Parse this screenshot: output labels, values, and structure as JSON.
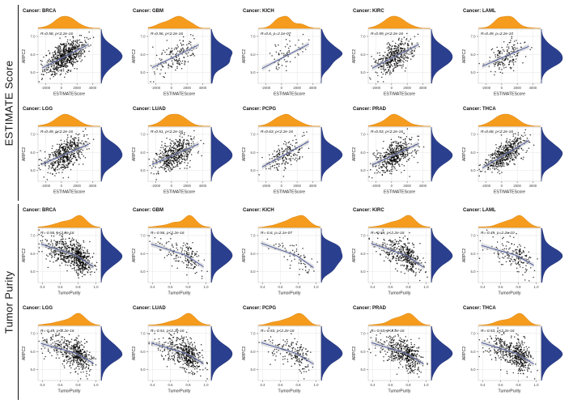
{
  "figure": {
    "groups": [
      {
        "label": "ESTIMATE Score"
      },
      {
        "label": "Tumor Purity"
      }
    ],
    "ylabel": "ARPC2",
    "colors": {
      "top_density": "#F59C1E",
      "top_density_stroke": "#D9820A",
      "right_density": "#2B3F8F",
      "right_density_stroke": "#1F2F6E",
      "trend_line": "#46549B",
      "band": "#BDBDBD",
      "point": "#000000",
      "grid": "#E4E4E4",
      "panel_border": "#C8C8C8",
      "tick_text": "#444444"
    }
  },
  "chart_data": [
    {
      "type": "scatter",
      "row_group": "ESTIMATE Score",
      "cancer": "BRCA",
      "title": "Cancer: BRCA",
      "annotation": "R=0.58, p<2.2e-16",
      "r": 0.58,
      "n": 700,
      "xlabel": "ESTIMATEScore",
      "ylabel": "ARPC2",
      "xlim": [
        -3000,
        5000
      ],
      "x_ticks": [
        -2000,
        0,
        2000,
        4000
      ],
      "x_tick_decimals": 0,
      "ylim": [
        4.4,
        7.4
      ],
      "y_ticks": [
        5,
        6,
        7
      ],
      "y_tick_decimals": 1,
      "skew": false
    },
    {
      "type": "scatter",
      "row_group": "ESTIMATE Score",
      "cancer": "GBM",
      "title": "Cancer: GBM",
      "annotation": "R=0.56, p<2.2e-16",
      "r": 0.56,
      "n": 160,
      "xlabel": "ESTIMATEScore",
      "ylabel": "ARPC2",
      "xlim": [
        -3000,
        5000
      ],
      "x_ticks": [
        -2000,
        0,
        2000,
        4000
      ],
      "x_tick_decimals": 0,
      "ylim": [
        4.4,
        7.4
      ],
      "y_ticks": [
        5,
        6,
        7
      ],
      "y_tick_decimals": 1,
      "skew": false
    },
    {
      "type": "scatter",
      "row_group": "ESTIMATE Score",
      "cancer": "KICH",
      "title": "Cancer: KICH",
      "annotation": "R=0.6, p=2.1e-07",
      "r": 0.6,
      "n": 66,
      "xlabel": "ESTIMATEScore",
      "ylabel": "ARPC2",
      "xlim": [
        -3000,
        5000
      ],
      "x_ticks": [
        -2000,
        0,
        2000,
        4000
      ],
      "x_tick_decimals": 0,
      "ylim": [
        4.4,
        7.4
      ],
      "y_ticks": [
        5,
        6,
        7
      ],
      "y_tick_decimals": 1,
      "skew": false
    },
    {
      "type": "scatter",
      "row_group": "ESTIMATE Score",
      "cancer": "KIRC",
      "title": "Cancer: KIRC",
      "annotation": "R=0.59, p<2.2e-16",
      "r": 0.59,
      "n": 420,
      "xlabel": "ESTIMATEScore",
      "ylabel": "ARPC2",
      "xlim": [
        -3000,
        5000
      ],
      "x_ticks": [
        -2000,
        0,
        2000,
        4000
      ],
      "x_tick_decimals": 0,
      "ylim": [
        4.4,
        7.4
      ],
      "y_ticks": [
        5,
        6,
        7
      ],
      "y_tick_decimals": 1,
      "skew": false
    },
    {
      "type": "scatter",
      "row_group": "ESTIMATE Score",
      "cancer": "LAML",
      "title": "Cancer: LAML",
      "annotation": "R=0.49, p=2.2e-10",
      "r": 0.49,
      "n": 170,
      "xlabel": "ESTIMATEScore",
      "ylabel": "ARPC2",
      "xlim": [
        -3000,
        5000
      ],
      "x_ticks": [
        -2000,
        0,
        2000,
        4000
      ],
      "x_tick_decimals": 0,
      "ylim": [
        4.4,
        7.4
      ],
      "y_ticks": [
        5,
        6,
        7
      ],
      "y_tick_decimals": 1,
      "skew": false
    },
    {
      "type": "scatter",
      "row_group": "ESTIMATE Score",
      "cancer": "LGG",
      "title": "Cancer: LGG",
      "annotation": "R=0.49, p<2.2e-16",
      "r": 0.49,
      "n": 510,
      "xlabel": "ESTIMATEScore",
      "ylabel": "ARPC2",
      "xlim": [
        -3000,
        5000
      ],
      "x_ticks": [
        -2000,
        0,
        2000,
        4000
      ],
      "x_tick_decimals": 0,
      "ylim": [
        4.4,
        7.4
      ],
      "y_ticks": [
        5,
        6,
        7
      ],
      "y_tick_decimals": 1,
      "skew": false
    },
    {
      "type": "scatter",
      "row_group": "ESTIMATE Score",
      "cancer": "LUAD",
      "title": "Cancer: LUAD",
      "annotation": "R=0.51, p<2.2e-16",
      "r": 0.51,
      "n": 500,
      "xlabel": "ESTIMATEScore",
      "ylabel": "ARPC2",
      "xlim": [
        -3000,
        5000
      ],
      "x_ticks": [
        -2000,
        0,
        2000,
        4000
      ],
      "x_tick_decimals": 0,
      "ylim": [
        4.4,
        7.4
      ],
      "y_ticks": [
        5,
        6,
        7
      ],
      "y_tick_decimals": 1,
      "skew": false
    },
    {
      "type": "scatter",
      "row_group": "ESTIMATE Score",
      "cancer": "PCPG",
      "title": "Cancer: PCPG",
      "annotation": "R=0.63, p<2.2e-16",
      "r": 0.63,
      "n": 180,
      "xlabel": "ESTIMATEScore",
      "ylabel": "ARPC2",
      "xlim": [
        -3000,
        5000
      ],
      "x_ticks": [
        -2000,
        0,
        2000,
        4000
      ],
      "x_tick_decimals": 0,
      "ylim": [
        4.4,
        7.4
      ],
      "y_ticks": [
        5,
        6,
        7
      ],
      "y_tick_decimals": 1,
      "skew": false
    },
    {
      "type": "scatter",
      "row_group": "ESTIMATE Score",
      "cancer": "PRAD",
      "title": "Cancer: PRAD",
      "annotation": "R=0.53, p<2.2e-16",
      "r": 0.53,
      "n": 490,
      "xlabel": "ESTIMATEScore",
      "ylabel": "ARPC2",
      "xlim": [
        -3000,
        5000
      ],
      "x_ticks": [
        -2000,
        0,
        2000,
        4000
      ],
      "x_tick_decimals": 0,
      "ylim": [
        4.4,
        7.4
      ],
      "y_ticks": [
        5,
        6,
        7
      ],
      "y_tick_decimals": 1,
      "skew": false
    },
    {
      "type": "scatter",
      "row_group": "ESTIMATE Score",
      "cancer": "THCA",
      "title": "Cancer: THCA",
      "annotation": "R=0.68, p<2.2e-16",
      "r": 0.68,
      "n": 500,
      "xlabel": "ESTIMATEScore",
      "ylabel": "ARPC2",
      "xlim": [
        -3000,
        5000
      ],
      "x_ticks": [
        -2000,
        0,
        2000,
        4000
      ],
      "x_tick_decimals": 0,
      "ylim": [
        4.4,
        7.4
      ],
      "y_ticks": [
        5,
        6,
        7
      ],
      "y_tick_decimals": 1,
      "skew": false
    },
    {
      "type": "scatter",
      "row_group": "Tumor Purity",
      "cancer": "BRCA",
      "title": "Cancer: BRCA",
      "annotation": "R=-0.56, p<2.2e-16",
      "r": -0.56,
      "n": 700,
      "xlabel": "TumorPurity",
      "ylabel": "ARPC2",
      "xlim": [
        0.35,
        1.05
      ],
      "x_ticks": [
        0.4,
        0.6,
        0.8,
        1.0
      ],
      "x_tick_decimals": 1,
      "ylim": [
        4.4,
        7.4
      ],
      "y_ticks": [
        5,
        6,
        7
      ],
      "y_tick_decimals": 1,
      "skew": true
    },
    {
      "type": "scatter",
      "row_group": "Tumor Purity",
      "cancer": "GBM",
      "title": "Cancer: GBM",
      "annotation": "R=-0.56, p<2.2e-16",
      "r": -0.56,
      "n": 160,
      "xlabel": "TumorPurity",
      "ylabel": "ARPC2",
      "xlim": [
        0.35,
        1.05
      ],
      "x_ticks": [
        0.4,
        0.6,
        0.8,
        1.0
      ],
      "x_tick_decimals": 1,
      "ylim": [
        4.4,
        7.4
      ],
      "y_ticks": [
        5,
        6,
        7
      ],
      "y_tick_decimals": 1,
      "skew": true
    },
    {
      "type": "scatter",
      "row_group": "Tumor Purity",
      "cancer": "KICH",
      "title": "Cancer: KICH",
      "annotation": "R=-0.6, p=2.1e-07",
      "r": -0.6,
      "n": 66,
      "xlabel": "TumorPurity",
      "ylabel": "ARPC2",
      "xlim": [
        0.35,
        1.05
      ],
      "x_ticks": [
        0.4,
        0.6,
        0.8,
        1.0
      ],
      "x_tick_decimals": 1,
      "ylim": [
        4.4,
        7.4
      ],
      "y_ticks": [
        5,
        6,
        7
      ],
      "y_tick_decimals": 1,
      "skew": true
    },
    {
      "type": "scatter",
      "row_group": "Tumor Purity",
      "cancer": "KIRC",
      "title": "Cancer: KIRC",
      "annotation": "R=-0.59, p<2.2e-16",
      "r": -0.59,
      "n": 420,
      "xlabel": "TumorPurity",
      "ylabel": "ARPC2",
      "xlim": [
        0.35,
        1.05
      ],
      "x_ticks": [
        0.4,
        0.6,
        0.8,
        1.0
      ],
      "x_tick_decimals": 1,
      "ylim": [
        4.4,
        7.4
      ],
      "y_ticks": [
        5,
        6,
        7
      ],
      "y_tick_decimals": 1,
      "skew": true
    },
    {
      "type": "scatter",
      "row_group": "Tumor Purity",
      "cancer": "LAML",
      "title": "Cancer: LAML",
      "annotation": "R=-0.49, p=2.2e-10",
      "r": -0.49,
      "n": 170,
      "xlabel": "TumorPurity",
      "ylabel": "ARPC2",
      "xlim": [
        0.35,
        1.05
      ],
      "x_ticks": [
        0.4,
        0.6,
        0.8,
        1.0
      ],
      "x_tick_decimals": 1,
      "ylim": [
        4.4,
        7.4
      ],
      "y_ticks": [
        5,
        6,
        7
      ],
      "y_tick_decimals": 1,
      "skew": true
    },
    {
      "type": "scatter",
      "row_group": "Tumor Purity",
      "cancer": "LGG",
      "title": "Cancer: LGG",
      "annotation": "R=-0.49, p<2.2e-16",
      "r": -0.49,
      "n": 510,
      "xlabel": "TumorPurity",
      "ylabel": "ARPC2",
      "xlim": [
        0.35,
        1.05
      ],
      "x_ticks": [
        0.4,
        0.6,
        0.8,
        1.0
      ],
      "x_tick_decimals": 1,
      "ylim": [
        4.4,
        7.4
      ],
      "y_ticks": [
        5,
        6,
        7
      ],
      "y_tick_decimals": 1,
      "skew": true
    },
    {
      "type": "scatter",
      "row_group": "Tumor Purity",
      "cancer": "LUAD",
      "title": "Cancer: LUAD",
      "annotation": "R=-0.51, p<2.2e-16",
      "r": -0.51,
      "n": 500,
      "xlabel": "TumorPurity",
      "ylabel": "ARPC2",
      "xlim": [
        0.35,
        1.05
      ],
      "x_ticks": [
        0.4,
        0.6,
        0.8,
        1.0
      ],
      "x_tick_decimals": 1,
      "ylim": [
        4.4,
        7.4
      ],
      "y_ticks": [
        5,
        6,
        7
      ],
      "y_tick_decimals": 1,
      "skew": true
    },
    {
      "type": "scatter",
      "row_group": "Tumor Purity",
      "cancer": "PCPG",
      "title": "Cancer: PCPG",
      "annotation": "R=-0.53, p<2.2e-16",
      "r": -0.53,
      "n": 180,
      "xlabel": "TumorPurity",
      "ylabel": "ARPC2",
      "xlim": [
        0.35,
        1.05
      ],
      "x_ticks": [
        0.4,
        0.6,
        0.8,
        1.0
      ],
      "x_tick_decimals": 1,
      "ylim": [
        4.4,
        7.4
      ],
      "y_ticks": [
        5,
        6,
        7
      ],
      "y_tick_decimals": 1,
      "skew": true
    },
    {
      "type": "scatter",
      "row_group": "Tumor Purity",
      "cancer": "PRAD",
      "title": "Cancer: PRAD",
      "annotation": "R=-0.53, p<2.2e-16",
      "r": -0.53,
      "n": 490,
      "xlabel": "TumorPurity",
      "ylabel": "ARPC2",
      "xlim": [
        0.35,
        1.05
      ],
      "x_ticks": [
        0.4,
        0.6,
        0.8,
        1.0
      ],
      "x_tick_decimals": 1,
      "ylim": [
        4.4,
        7.4
      ],
      "y_ticks": [
        5,
        6,
        7
      ],
      "y_tick_decimals": 1,
      "skew": true
    },
    {
      "type": "scatter",
      "row_group": "Tumor Purity",
      "cancer": "THCA",
      "title": "Cancer: THCA",
      "annotation": "R=-0.53, p<2.2e-16",
      "r": -0.53,
      "n": 500,
      "xlabel": "TumorPurity",
      "ylabel": "ARPC2",
      "xlim": [
        0.35,
        1.05
      ],
      "x_ticks": [
        0.4,
        0.6,
        0.8,
        1.0
      ],
      "x_tick_decimals": 1,
      "ylim": [
        4.4,
        7.4
      ],
      "y_ticks": [
        5,
        6,
        7
      ],
      "y_tick_decimals": 1,
      "skew": true
    }
  ]
}
